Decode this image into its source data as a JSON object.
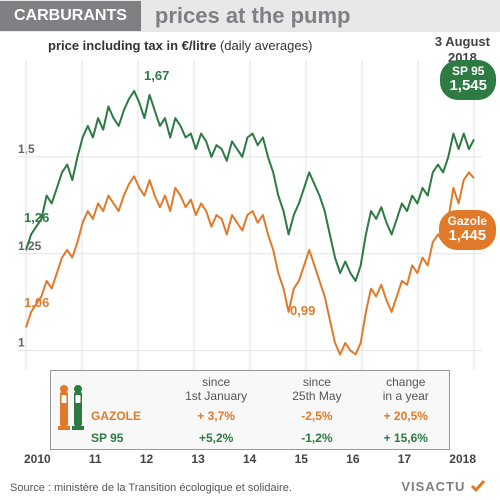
{
  "header": {
    "badge": "CARBURANTS",
    "title": "prices at the pump",
    "subtitle_main": "price including tax in €/litre",
    "subtitle_paren": "(daily averages)",
    "date_line1": "3 August",
    "date_line2": "2018"
  },
  "colors": {
    "sp95": "#2d7a43",
    "gazole": "#e07a2a",
    "grid": "#e2e2e2",
    "axis": "#777",
    "box_border": "#999999",
    "header_bg": "#e8e8e8",
    "badge_bg": "#808084"
  },
  "chart": {
    "type": "line",
    "xlabels": [
      "2010",
      "11",
      "12",
      "13",
      "14",
      "15",
      "16",
      "17",
      "2018"
    ],
    "ylim": [
      0.95,
      1.75
    ],
    "yticks": [
      1,
      1.25,
      1.5
    ],
    "line_width": 2,
    "series": {
      "sp95": {
        "label": "SP 95",
        "current": "1,545",
        "start_label": "1,26",
        "peak_label": "1,67",
        "points": [
          1.26,
          1.3,
          1.32,
          1.34,
          1.4,
          1.38,
          1.42,
          1.46,
          1.48,
          1.44,
          1.5,
          1.55,
          1.58,
          1.55,
          1.6,
          1.57,
          1.63,
          1.6,
          1.58,
          1.62,
          1.65,
          1.67,
          1.64,
          1.6,
          1.66,
          1.62,
          1.58,
          1.6,
          1.55,
          1.6,
          1.58,
          1.55,
          1.56,
          1.52,
          1.56,
          1.54,
          1.5,
          1.53,
          1.52,
          1.49,
          1.54,
          1.52,
          1.5,
          1.55,
          1.56,
          1.53,
          1.55,
          1.5,
          1.46,
          1.4,
          1.36,
          1.3,
          1.35,
          1.38,
          1.42,
          1.46,
          1.43,
          1.4,
          1.36,
          1.3,
          1.24,
          1.2,
          1.23,
          1.2,
          1.18,
          1.22,
          1.3,
          1.36,
          1.34,
          1.37,
          1.33,
          1.3,
          1.34,
          1.38,
          1.36,
          1.4,
          1.38,
          1.42,
          1.4,
          1.46,
          1.48,
          1.46,
          1.5,
          1.56,
          1.52,
          1.56,
          1.52,
          1.545
        ]
      },
      "gazole": {
        "label": "Gazole",
        "current": "1,445",
        "start_label": "1,06",
        "low_label": "0,99",
        "points": [
          1.06,
          1.1,
          1.12,
          1.14,
          1.18,
          1.16,
          1.2,
          1.24,
          1.26,
          1.24,
          1.28,
          1.33,
          1.36,
          1.34,
          1.38,
          1.36,
          1.4,
          1.38,
          1.36,
          1.4,
          1.43,
          1.45,
          1.42,
          1.4,
          1.44,
          1.4,
          1.37,
          1.4,
          1.36,
          1.42,
          1.4,
          1.37,
          1.39,
          1.35,
          1.38,
          1.36,
          1.32,
          1.35,
          1.34,
          1.3,
          1.35,
          1.33,
          1.31,
          1.35,
          1.36,
          1.33,
          1.35,
          1.3,
          1.26,
          1.2,
          1.16,
          1.1,
          1.16,
          1.18,
          1.22,
          1.26,
          1.22,
          1.18,
          1.14,
          1.08,
          1.02,
          0.99,
          1.02,
          1.0,
          0.99,
          1.02,
          1.1,
          1.16,
          1.14,
          1.17,
          1.13,
          1.1,
          1.14,
          1.18,
          1.17,
          1.22,
          1.2,
          1.24,
          1.22,
          1.28,
          1.3,
          1.28,
          1.34,
          1.42,
          1.38,
          1.44,
          1.46,
          1.445
        ]
      }
    }
  },
  "table": {
    "headers": [
      "",
      "since\n1st January",
      "since\n25th May",
      "change\nin a year"
    ],
    "rows": [
      {
        "name": "GAZOLE",
        "cells": [
          "+ 3,7%",
          "-2,5%",
          "+ 20,5%"
        ]
      },
      {
        "name": "SP 95",
        "cells": [
          "+5,2%",
          "-1,2%",
          "+ 15,6%"
        ]
      }
    ]
  },
  "footer": {
    "source": "Source : ministère de la Transition écologique et solidaire.",
    "brand": "VISACTU"
  }
}
